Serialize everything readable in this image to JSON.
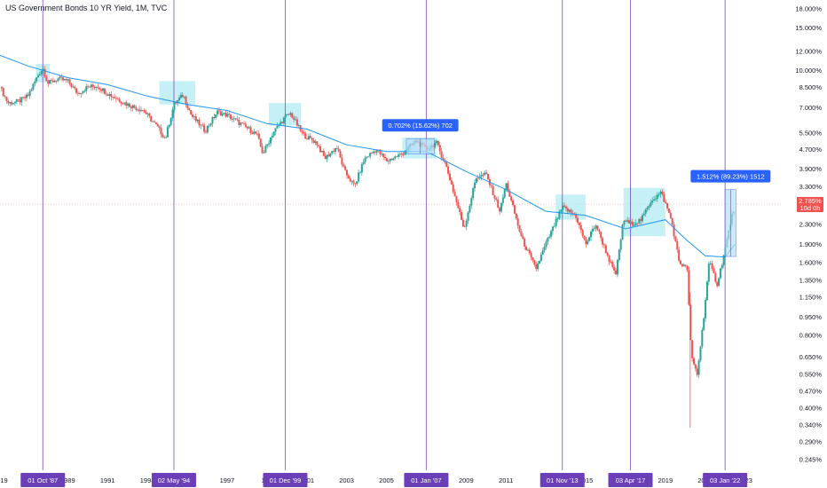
{
  "header": {
    "title": "US Government Bonds 10 YR Yield, 1M, TVC"
  },
  "colors": {
    "up": "#26a69a",
    "down": "#ef5350",
    "ma": "#2196f3",
    "marker_line": "#7e57c2",
    "marker_bg": "#6a3fb8",
    "zone_fill": "#b2ebf2",
    "measure_fill": "#bbdefb",
    "measure_label": "#2962ff",
    "price_tag": "#ef5350"
  },
  "chart_data": {
    "type": "candlestick",
    "title": "US Government Bonds 10 YR Yield, 1M, TVC",
    "y_scale": "log",
    "ylim": [
      0.22,
      19.5
    ],
    "xlim": [
      1985.6,
      2024.8
    ],
    "price_ticks": [
      "18.000%",
      "15.000%",
      "12.000%",
      "10.000%",
      "8.500%",
      "7.000%",
      "5.500%",
      "4.700%",
      "3.900%",
      "3.300%",
      "2.300%",
      "1.900%",
      "1.600%",
      "1.350%",
      "1.150%",
      "0.950%",
      "0.800%",
      "0.650%",
      "0.550%",
      "0.470%",
      "0.400%",
      "0.340%",
      "0.290%",
      "0.245%"
    ],
    "price_tick_values": [
      18,
      15,
      12,
      10,
      8.5,
      7,
      5.5,
      4.7,
      3.9,
      3.3,
      2.3,
      1.9,
      1.6,
      1.35,
      1.15,
      0.95,
      0.8,
      0.65,
      0.55,
      0.47,
      0.4,
      0.34,
      0.29,
      0.245
    ],
    "time_ticks": [
      {
        "label": "19",
        "x": 1985.8
      },
      {
        "label": "1989",
        "x": 1989
      },
      {
        "label": "1991",
        "x": 1991
      },
      {
        "label": "1993",
        "x": 1993
      },
      {
        "label": "5",
        "x": 1995.2
      },
      {
        "label": "1997",
        "x": 1997
      },
      {
        "label": "19",
        "x": 1998.9
      },
      {
        "label": "2001",
        "x": 2001
      },
      {
        "label": "2003",
        "x": 2003
      },
      {
        "label": "2005",
        "x": 2005
      },
      {
        "label": "2009",
        "x": 2009
      },
      {
        "label": "2011",
        "x": 2011
      },
      {
        "label": "20",
        "x": 2012.9
      },
      {
        "label": "2015",
        "x": 2015
      },
      {
        "label": "2019",
        "x": 2019
      },
      {
        "label": "202",
        "x": 2020.9
      },
      {
        "label": "2023",
        "x": 2023
      }
    ],
    "markers": [
      {
        "label": "01 Oct '87",
        "x": 1987.75
      },
      {
        "label": "02 May '94",
        "x": 1994.33
      },
      {
        "label": "01 Dec '99",
        "x": 1999.92
      },
      {
        "label": "01 Jan '07",
        "x": 2007.0
      },
      {
        "label": "01 Nov '13",
        "x": 2013.83
      },
      {
        "label": "03 Apr '17",
        "x": 2017.25
      },
      {
        "label": "03 Jan '22",
        "x": 2022.0
      }
    ],
    "zones": [
      {
        "x0": 1987.4,
        "x1": 1988.1,
        "y0": 8.9,
        "y1": 10.6
      },
      {
        "x0": 1993.6,
        "x1": 1995.4,
        "y0": 7.2,
        "y1": 9.0
      },
      {
        "x0": 1999.1,
        "x1": 2000.7,
        "y0": 5.9,
        "y1": 7.3
      },
      {
        "x0": 2005.8,
        "x1": 2007.5,
        "y0": 4.3,
        "y1": 5.25
      },
      {
        "x0": 2013.5,
        "x1": 2015.0,
        "y0": 2.4,
        "y1": 3.05
      },
      {
        "x0": 2016.9,
        "x1": 2019.0,
        "y0": 2.05,
        "y1": 3.25
      }
    ],
    "measures": [
      {
        "label": "0.702% (15.62%) 702",
        "x0": 2006.0,
        "x1": 2007.4,
        "y0": 4.5,
        "y1": 5.2
      },
      {
        "label": "1.512% (89.23%) 1512",
        "x0": 2022.0,
        "x1": 2022.55,
        "y0": 1.69,
        "y1": 3.2
      }
    ],
    "last_price": {
      "value": 2.785,
      "label": "2.785%",
      "countdown": "10d 0h"
    },
    "series": [
      {
        "name": "",
        "type": "ma",
        "points": [
          [
            1985.6,
            11.5
          ],
          [
            1987,
            10.4
          ],
          [
            1989,
            9.3
          ],
          [
            1991,
            8.7
          ],
          [
            1993,
            7.8
          ],
          [
            1995,
            7.2
          ],
          [
            1997,
            6.8
          ],
          [
            1999,
            6.0
          ],
          [
            2001,
            5.7
          ],
          [
            2003,
            4.9
          ],
          [
            2005,
            4.6
          ],
          [
            2007,
            4.6
          ],
          [
            2009,
            3.8
          ],
          [
            2011,
            3.2
          ],
          [
            2013,
            2.6
          ],
          [
            2015,
            2.5
          ],
          [
            2017,
            2.2
          ],
          [
            2019,
            2.4
          ],
          [
            2020,
            2.0
          ],
          [
            2021,
            1.7
          ],
          [
            2022,
            1.68
          ],
          [
            2022.5,
            1.9
          ]
        ]
      },
      {
        "name": "",
        "type": "close",
        "points": [
          [
            1985.6,
            8.5
          ],
          [
            1986,
            7.3
          ],
          [
            1986.5,
            7.4
          ],
          [
            1987,
            7.8
          ],
          [
            1987.5,
            9.5
          ],
          [
            1987.75,
            10.2
          ],
          [
            1988,
            8.8
          ],
          [
            1988.5,
            9.2
          ],
          [
            1989,
            9.0
          ],
          [
            1989.5,
            8.0
          ],
          [
            1990,
            8.5
          ],
          [
            1990.5,
            8.6
          ],
          [
            1991,
            8.0
          ],
          [
            1992,
            7.2
          ],
          [
            1992.8,
            6.8
          ],
          [
            1993.5,
            5.8
          ],
          [
            1993.9,
            5.2
          ],
          [
            1994.33,
            7.2
          ],
          [
            1994.8,
            7.9
          ],
          [
            1995.2,
            6.5
          ],
          [
            1995.9,
            5.6
          ],
          [
            1996.5,
            6.7
          ],
          [
            1997,
            6.5
          ],
          [
            1997.8,
            5.9
          ],
          [
            1998.5,
            5.4
          ],
          [
            1998.8,
            4.5
          ],
          [
            1999.3,
            5.5
          ],
          [
            1999.92,
            6.4
          ],
          [
            2000.2,
            6.6
          ],
          [
            2000.8,
            5.4
          ],
          [
            2001.5,
            5.0
          ],
          [
            2001.9,
            4.3
          ],
          [
            2002.5,
            4.8
          ],
          [
            2002.9,
            3.8
          ],
          [
            2003.4,
            3.3
          ],
          [
            2003.9,
            4.3
          ],
          [
            2004.5,
            4.7
          ],
          [
            2005,
            4.2
          ],
          [
            2005.8,
            4.5
          ],
          [
            2006.5,
            5.1
          ],
          [
            2007,
            4.7
          ],
          [
            2007.5,
            5.0
          ],
          [
            2008,
            4.0
          ],
          [
            2008.9,
            2.2
          ],
          [
            2009.5,
            3.6
          ],
          [
            2010,
            3.7
          ],
          [
            2010.7,
            2.6
          ],
          [
            2011,
            3.4
          ],
          [
            2011.8,
            2.0
          ],
          [
            2012.5,
            1.5
          ],
          [
            2013,
            1.9
          ],
          [
            2013.83,
            2.7
          ],
          [
            2014.5,
            2.5
          ],
          [
            2015,
            1.9
          ],
          [
            2015.5,
            2.3
          ],
          [
            2016.5,
            1.4
          ],
          [
            2016.9,
            2.4
          ],
          [
            2017.25,
            2.3
          ],
          [
            2017.8,
            2.4
          ],
          [
            2018.3,
            2.9
          ],
          [
            2018.8,
            3.1
          ],
          [
            2019.3,
            2.4
          ],
          [
            2019.7,
            1.6
          ],
          [
            2020.1,
            1.5
          ],
          [
            2020.3,
            0.65
          ],
          [
            2020.6,
            0.55
          ],
          [
            2020.9,
            0.9
          ],
          [
            2021.2,
            1.6
          ],
          [
            2021.6,
            1.3
          ],
          [
            2022,
            1.8
          ],
          [
            2022.3,
            2.4
          ],
          [
            2022.5,
            2.785
          ]
        ]
      }
    ]
  }
}
